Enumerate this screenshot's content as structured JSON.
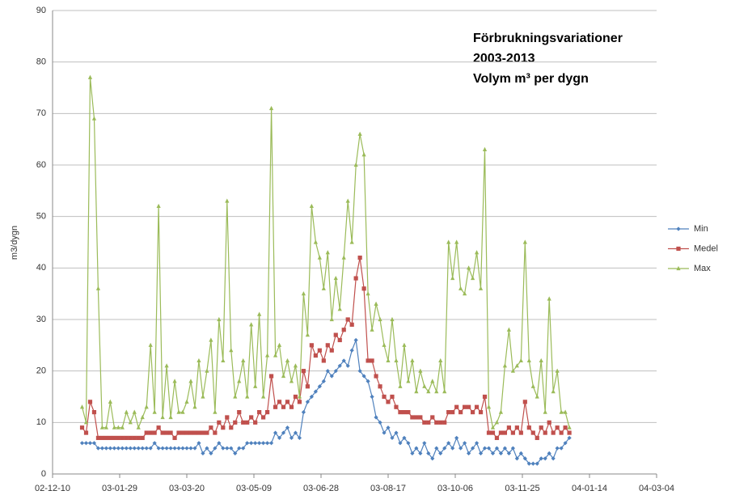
{
  "chart_data": {
    "type": "line",
    "title": [
      "Förbrukningsvariationer",
      "2003-2013",
      "Volym m³ per dygn"
    ],
    "y_label": "m3/dygn",
    "xlim": [
      "02-12-10",
      "04-03-04"
    ],
    "xticks": [
      "02-12-10",
      "03-01-29",
      "03-03-20",
      "03-05-09",
      "03-06-28",
      "03-08-17",
      "03-10-06",
      "03-11-25",
      "04-01-14",
      "04-03-04"
    ],
    "ylim": [
      0,
      90
    ],
    "yticks": [
      0,
      10,
      20,
      30,
      40,
      50,
      60,
      70,
      80,
      90
    ],
    "grid": true,
    "legend": "right",
    "x": [
      "03-01-01",
      "03-01-04",
      "03-01-07",
      "03-01-10",
      "03-01-13",
      "03-01-16",
      "03-01-19",
      "03-01-22",
      "03-01-25",
      "03-01-28",
      "03-01-31",
      "03-02-03",
      "03-02-06",
      "03-02-09",
      "03-02-12",
      "03-02-15",
      "03-02-18",
      "03-02-21",
      "03-02-24",
      "03-02-27",
      "03-03-02",
      "03-03-05",
      "03-03-08",
      "03-03-11",
      "03-03-14",
      "03-03-17",
      "03-03-20",
      "03-03-23",
      "03-03-26",
      "03-03-29",
      "03-04-01",
      "03-04-04",
      "03-04-07",
      "03-04-10",
      "03-04-13",
      "03-04-16",
      "03-04-19",
      "03-04-22",
      "03-04-25",
      "03-04-28",
      "03-05-01",
      "03-05-04",
      "03-05-07",
      "03-05-10",
      "03-05-13",
      "03-05-16",
      "03-05-19",
      "03-05-22",
      "03-05-25",
      "03-05-28",
      "03-05-31",
      "03-06-03",
      "03-06-06",
      "03-06-09",
      "03-06-12",
      "03-06-15",
      "03-06-18",
      "03-06-21",
      "03-06-24",
      "03-06-27",
      "03-06-30",
      "03-07-03",
      "03-07-06",
      "03-07-09",
      "03-07-12",
      "03-07-15",
      "03-07-18",
      "03-07-21",
      "03-07-24",
      "03-07-27",
      "03-07-30",
      "03-08-02",
      "03-08-05",
      "03-08-08",
      "03-08-11",
      "03-08-14",
      "03-08-17",
      "03-08-20",
      "03-08-23",
      "03-08-26",
      "03-08-29",
      "03-09-01",
      "03-09-04",
      "03-09-07",
      "03-09-10",
      "03-09-13",
      "03-09-16",
      "03-09-19",
      "03-09-22",
      "03-09-25",
      "03-09-28",
      "03-10-01",
      "03-10-04",
      "03-10-07",
      "03-10-10",
      "03-10-13",
      "03-10-16",
      "03-10-19",
      "03-10-22",
      "03-10-25",
      "03-10-28",
      "03-10-31",
      "03-11-03",
      "03-11-06",
      "03-11-09",
      "03-11-12",
      "03-11-15",
      "03-11-18",
      "03-11-21",
      "03-11-24",
      "03-11-27",
      "03-11-30",
      "03-12-03",
      "03-12-06",
      "03-12-09",
      "03-12-12",
      "03-12-15",
      "03-12-18",
      "03-12-21",
      "03-12-24",
      "03-12-27",
      "03-12-30"
    ],
    "series": [
      {
        "name": "Min",
        "color": "#4f81bd",
        "marker": "diamond",
        "values": [
          6,
          6,
          6,
          6,
          5,
          5,
          5,
          5,
          5,
          5,
          5,
          5,
          5,
          5,
          5,
          5,
          5,
          5,
          6,
          5,
          5,
          5,
          5,
          5,
          5,
          5,
          5,
          5,
          5,
          6,
          4,
          5,
          4,
          5,
          6,
          5,
          5,
          5,
          4,
          5,
          5,
          6,
          6,
          6,
          6,
          6,
          6,
          6,
          8,
          7,
          8,
          9,
          7,
          8,
          7,
          12,
          14,
          15,
          16,
          17,
          18,
          20,
          19,
          20,
          21,
          22,
          21,
          24,
          26,
          20,
          19,
          18,
          15,
          11,
          10,
          8,
          9,
          7,
          8,
          6,
          7,
          6,
          4,
          5,
          4,
          6,
          4,
          3,
          5,
          4,
          5,
          6,
          5,
          7,
          5,
          6,
          4,
          5,
          6,
          4,
          5,
          5,
          4,
          5,
          4,
          5,
          4,
          5,
          3,
          4,
          3,
          2,
          2,
          2,
          3,
          3,
          4,
          3,
          5,
          5,
          6,
          7
        ]
      },
      {
        "name": "Medel",
        "color": "#c0504d",
        "marker": "square",
        "values": [
          9,
          8,
          14,
          12,
          7,
          7,
          7,
          7,
          7,
          7,
          7,
          7,
          7,
          7,
          7,
          7,
          8,
          8,
          8,
          9,
          8,
          8,
          8,
          7,
          8,
          8,
          8,
          8,
          8,
          8,
          8,
          8,
          9,
          8,
          10,
          9,
          11,
          9,
          10,
          12,
          10,
          10,
          11,
          10,
          12,
          11,
          12,
          19,
          13,
          14,
          13,
          14,
          13,
          15,
          14,
          20,
          17,
          25,
          23,
          24,
          22,
          25,
          24,
          27,
          26,
          28,
          30,
          29,
          38,
          42,
          36,
          22,
          22,
          19,
          17,
          15,
          14,
          15,
          13,
          12,
          12,
          12,
          11,
          11,
          11,
          10,
          10,
          11,
          10,
          10,
          10,
          12,
          12,
          13,
          12,
          13,
          13,
          12,
          13,
          12,
          15,
          8,
          8,
          7,
          8,
          8,
          9,
          8,
          9,
          8,
          14,
          9,
          8,
          7,
          9,
          8,
          10,
          8,
          9,
          8,
          9,
          8
        ]
      },
      {
        "name": "Max",
        "color": "#9bbb59",
        "marker": "triangle",
        "values": [
          13,
          10,
          77,
          69,
          36,
          9,
          9,
          14,
          9,
          9,
          9,
          12,
          10,
          12,
          9,
          11,
          13,
          25,
          12,
          52,
          11,
          21,
          11,
          18,
          12,
          12,
          14,
          18,
          13,
          22,
          15,
          20,
          26,
          12,
          30,
          22,
          53,
          24,
          15,
          18,
          22,
          15,
          29,
          17,
          31,
          15,
          23,
          71,
          23,
          25,
          19,
          22,
          18,
          21,
          15,
          35,
          27,
          52,
          45,
          42,
          36,
          43,
          30,
          38,
          32,
          42,
          53,
          45,
          60,
          66,
          62,
          35,
          28,
          33,
          30,
          25,
          22,
          30,
          22,
          17,
          25,
          18,
          22,
          16,
          20,
          17,
          16,
          18,
          16,
          22,
          16,
          45,
          38,
          45,
          36,
          35,
          40,
          38,
          43,
          36,
          63,
          13,
          9,
          10,
          12,
          21,
          28,
          20,
          21,
          22,
          45,
          22,
          17,
          15,
          22,
          12,
          34,
          16,
          20,
          12,
          12,
          9
        ]
      }
    ]
  }
}
